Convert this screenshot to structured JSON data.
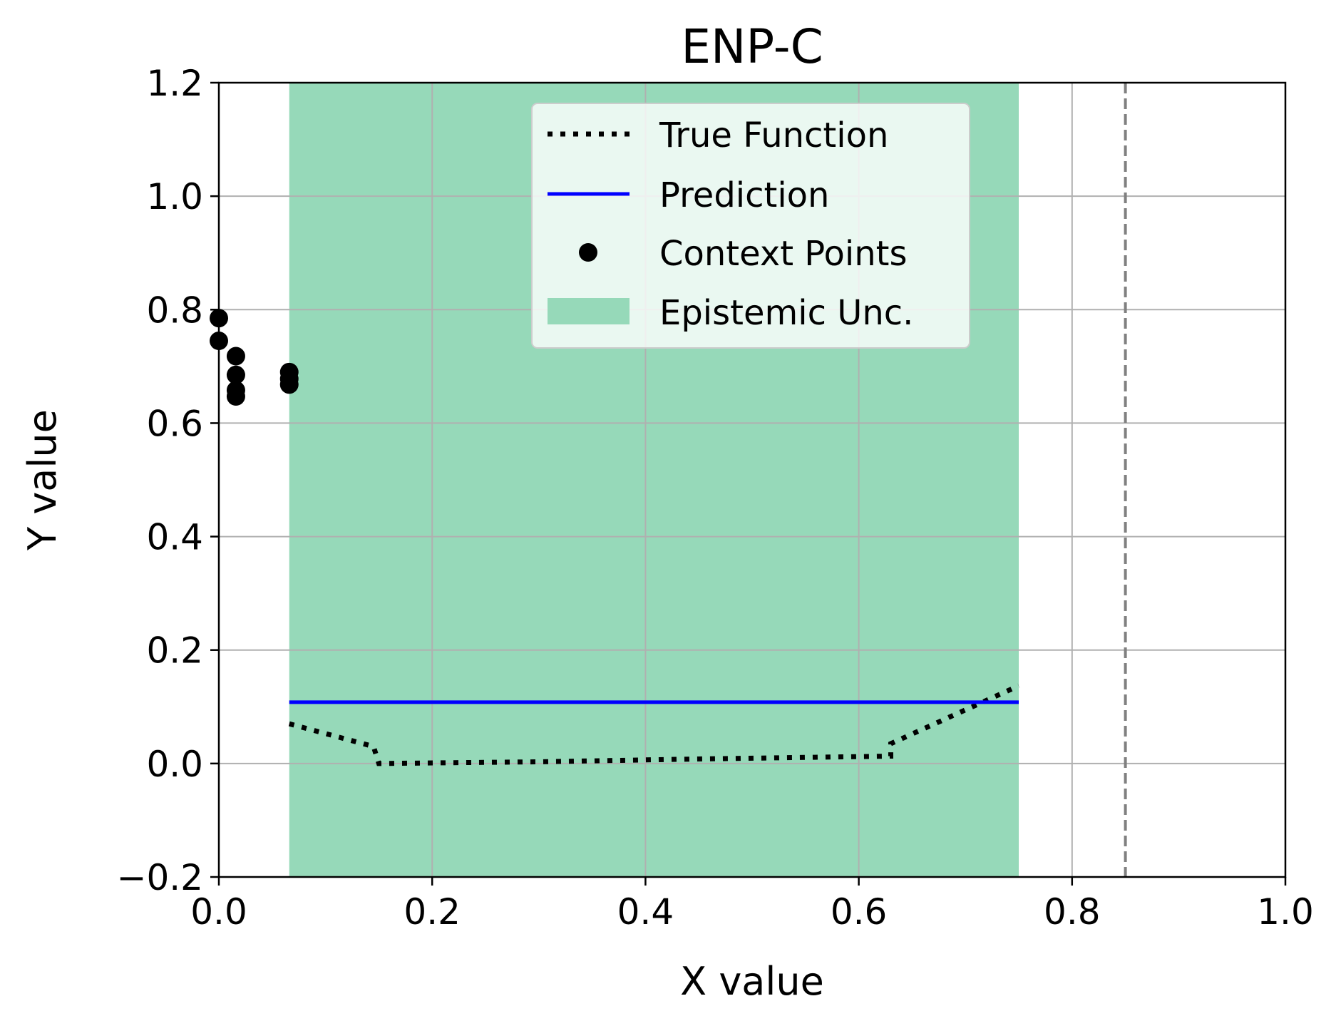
{
  "chart_data": {
    "type": "line",
    "title": "ENP-C",
    "xlabel": "X value",
    "ylabel": "Y value",
    "xlim": [
      0.0,
      1.0
    ],
    "ylim": [
      -0.2,
      1.2
    ],
    "xticks": [
      "0.0",
      "0.2",
      "0.4",
      "0.6",
      "0.8",
      "1.0"
    ],
    "xtick_values": [
      0.0,
      0.2,
      0.4,
      0.6,
      0.8,
      1.0
    ],
    "yticks": [
      "−0.2",
      "0.0",
      "0.2",
      "0.4",
      "0.6",
      "0.8",
      "1.0",
      "1.2"
    ],
    "ytick_values": [
      -0.2,
      0.0,
      0.2,
      0.4,
      0.6,
      0.8,
      1.0,
      1.2
    ],
    "grid": true,
    "legend_position": "top-center",
    "series": [
      {
        "name": "True Function",
        "style": "dotted",
        "color": "#000000",
        "x": [
          0.066,
          0.145,
          0.15,
          0.3,
          0.45,
          0.63,
          0.63,
          0.75
        ],
        "y": [
          0.07,
          0.03,
          0.0,
          0.003,
          0.008,
          0.013,
          0.035,
          0.137
        ]
      },
      {
        "name": "Prediction",
        "style": "solid",
        "color": "#0000ff",
        "x": [
          0.066,
          0.75
        ],
        "y": [
          0.108,
          0.108
        ]
      },
      {
        "name": "Context Points",
        "style": "markers",
        "color": "#000000",
        "x": [
          0.0,
          0.0,
          0.016,
          0.016,
          0.016,
          0.016,
          0.066,
          0.066,
          0.066
        ],
        "y": [
          0.785,
          0.745,
          0.718,
          0.685,
          0.658,
          0.647,
          0.69,
          0.678,
          0.668
        ]
      },
      {
        "name": "Epistemic Unc.",
        "style": "fill",
        "color": "#96d9b9",
        "x_range": [
          0.066,
          0.75
        ],
        "y_range": [
          -0.2,
          1.2
        ]
      }
    ],
    "vertical_line": {
      "x": 0.85,
      "style": "dashed",
      "color": "#808080"
    }
  }
}
